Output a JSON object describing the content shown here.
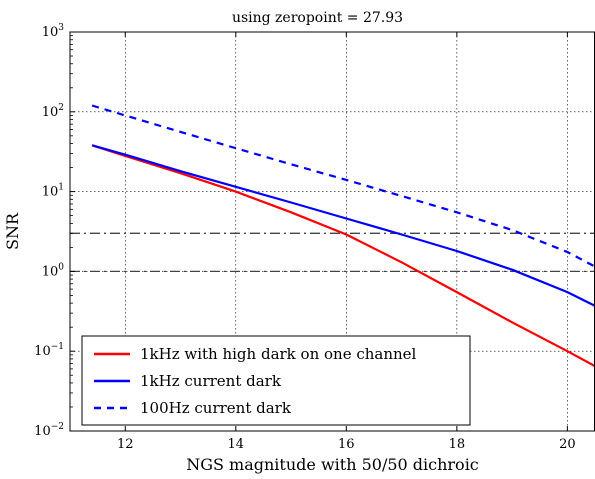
{
  "chart_data": {
    "type": "line",
    "title": "using zeropoint = 27.93",
    "xlabel": "NGS magnitude with 50/50 dichroic",
    "ylabel": "SNR",
    "xlim": [
      11,
      20.5
    ],
    "ylim": [
      0.01,
      1000
    ],
    "yscale": "log",
    "grid": true,
    "legend_position": "bottom-left",
    "xticks": [
      12,
      14,
      16,
      18,
      20
    ],
    "xtick_labels": [
      "12",
      "14",
      "16",
      "18",
      "20"
    ],
    "yticks": [
      {
        "value": 0.01,
        "base": "10",
        "exp": "−2"
      },
      {
        "value": 0.1,
        "base": "10",
        "exp": "−1"
      },
      {
        "value": 1,
        "base": "10",
        "exp": "0"
      },
      {
        "value": 10,
        "base": "10",
        "exp": "1"
      },
      {
        "value": 100,
        "base": "10",
        "exp": "2"
      },
      {
        "value": 1000,
        "base": "10",
        "exp": "3"
      }
    ],
    "reference_lines": [
      3,
      1
    ],
    "series": [
      {
        "name": "1kHz with high dark on one channel",
        "color": "#ff0000",
        "dash": "solid",
        "x": [
          11.4,
          12,
          13,
          14,
          15,
          16,
          17,
          18,
          19,
          20,
          20.5
        ],
        "y": [
          38,
          28,
          17,
          10,
          5.5,
          2.9,
          1.3,
          0.55,
          0.23,
          0.1,
          0.065
        ]
      },
      {
        "name": "1kHz current dark",
        "color": "#0000ff",
        "dash": "solid",
        "x": [
          11.4,
          12,
          13,
          14,
          15,
          16,
          17,
          18,
          19,
          20,
          20.5
        ],
        "y": [
          38,
          29,
          18,
          11.5,
          7.3,
          4.6,
          2.9,
          1.8,
          1.05,
          0.55,
          0.37
        ]
      },
      {
        "name": "100Hz current dark",
        "color": "#0000ff",
        "dash": "dashed",
        "x": [
          11.4,
          12,
          13,
          14,
          15,
          16,
          17,
          18,
          19,
          20,
          20.5
        ],
        "y": [
          120,
          90,
          56,
          35,
          22,
          14,
          8.8,
          5.5,
          3.3,
          1.75,
          1.15
        ]
      }
    ]
  }
}
